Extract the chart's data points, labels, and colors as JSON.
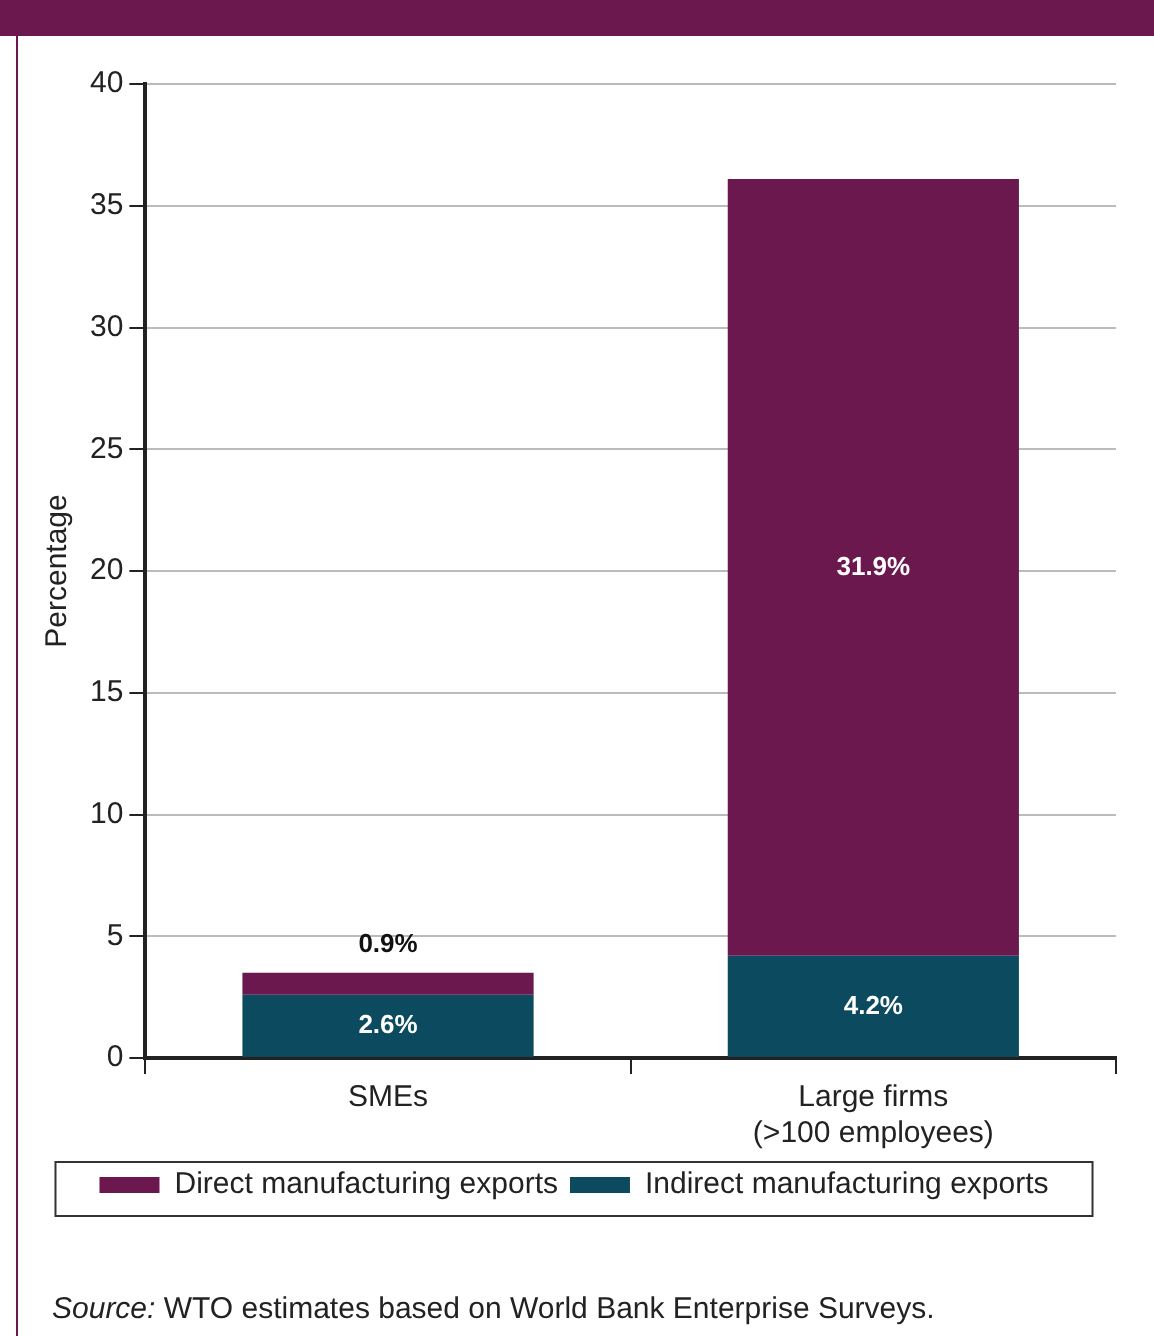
{
  "chart_data": {
    "type": "bar",
    "stacked": true,
    "ylabel": "Percentage",
    "categories": [
      "SMEs",
      "Large firms\n(>100 employees)"
    ],
    "series": [
      {
        "name": "Indirect manufacturing exports",
        "color": "#0c4a5f",
        "values": [
          2.6,
          4.2
        ],
        "value_labels": [
          "2.6%",
          "4.2%"
        ]
      },
      {
        "name": "Direct manufacturing exports",
        "color": "#6a184d",
        "values": [
          0.9,
          31.9
        ],
        "value_labels": [
          "0.9%",
          "31.9%"
        ]
      }
    ],
    "ylim": [
      0,
      40
    ],
    "yticks": [
      0,
      5,
      10,
      15,
      20,
      25,
      30,
      35,
      40
    ],
    "grid": "y",
    "legend": "bottom",
    "annotations": [
      "Source: WTO estimates based on World Bank Enterprise Surveys."
    ]
  }
}
